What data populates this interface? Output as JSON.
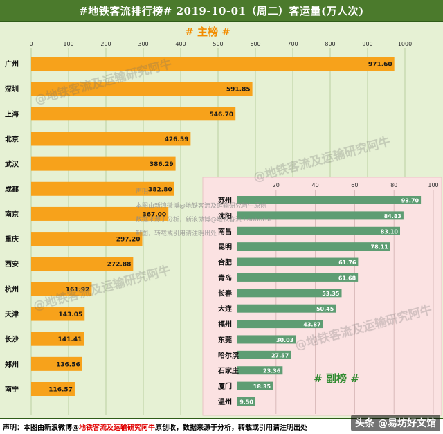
{
  "title": "#地铁客流排行榜#  2019-10-01（周二）客运量(万人次)",
  "watermark_text": "@地铁客流及运输研究阿牛",
  "chart_data": [
    {
      "type": "bar",
      "orientation": "horizontal",
      "title": "# 主榜 #",
      "xlim": [
        0,
        1000
      ],
      "xticks": [
        0,
        100,
        200,
        300,
        400,
        500,
        600,
        700,
        800,
        900,
        1000
      ],
      "grid": true,
      "color": "#f7a21b",
      "categories": [
        "广州",
        "深圳",
        "上海",
        "北京",
        "武汉",
        "成都",
        "南京",
        "重庆",
        "西安",
        "杭州",
        "天津",
        "长沙",
        "郑州",
        "南宁"
      ],
      "values": [
        971.6,
        591.85,
        546.7,
        426.59,
        386.29,
        382.8,
        367.0,
        297.2,
        272.88,
        161.92,
        143.05,
        141.41,
        136.56,
        116.57
      ],
      "data_labels": [
        "971.60",
        "591.85",
        "546.70",
        "426.59",
        "386.29",
        "382.80",
        "367.00",
        "297.20",
        "272.88",
        "161.92",
        "143.05",
        "141.41",
        "136.56",
        "116.57"
      ]
    },
    {
      "type": "bar",
      "orientation": "horizontal",
      "title": "# 副榜 #",
      "xlim": [
        0,
        100
      ],
      "xticks": [
        20,
        40,
        60,
        80,
        100
      ],
      "grid": true,
      "color": "#5e9d73",
      "background": "#fbe2e2",
      "categories": [
        "苏州",
        "沈阳",
        "南昌",
        "昆明",
        "合肥",
        "青岛",
        "长春",
        "大连",
        "福州",
        "东莞",
        "哈尔滨",
        "石家庄",
        "厦门",
        "温州"
      ],
      "values": [
        93.7,
        84.83,
        83.1,
        78.11,
        61.76,
        61.68,
        53.35,
        50.45,
        43.87,
        30.03,
        27.57,
        23.36,
        18.35,
        9.5
      ],
      "data_labels": [
        "93.70",
        "84.83",
        "83.10",
        "78.11",
        "61.76",
        "61.68",
        "53.35",
        "50.45",
        "43.87",
        "30.03",
        "27.57",
        "23.36",
        "18.35",
        "9.50"
      ]
    }
  ],
  "copyright_note": {
    "line1": "声明",
    "line2": "本图由新浪微博@地铁客流及运输研究阿牛原创",
    "line3": "数据来源于分析，新浪微博@地铁客流 liaoburui",
    "line4": "制图，转载或引用请注明出处"
  },
  "footer": {
    "prefix": "声明：本图由新浪微博@",
    "highlight": "地铁客流及运输研究阿牛",
    "suffix": "原创收，数据来源于分析，转载或引用请注明出处"
  },
  "site_watermark": "头条 @易坊好文馆"
}
